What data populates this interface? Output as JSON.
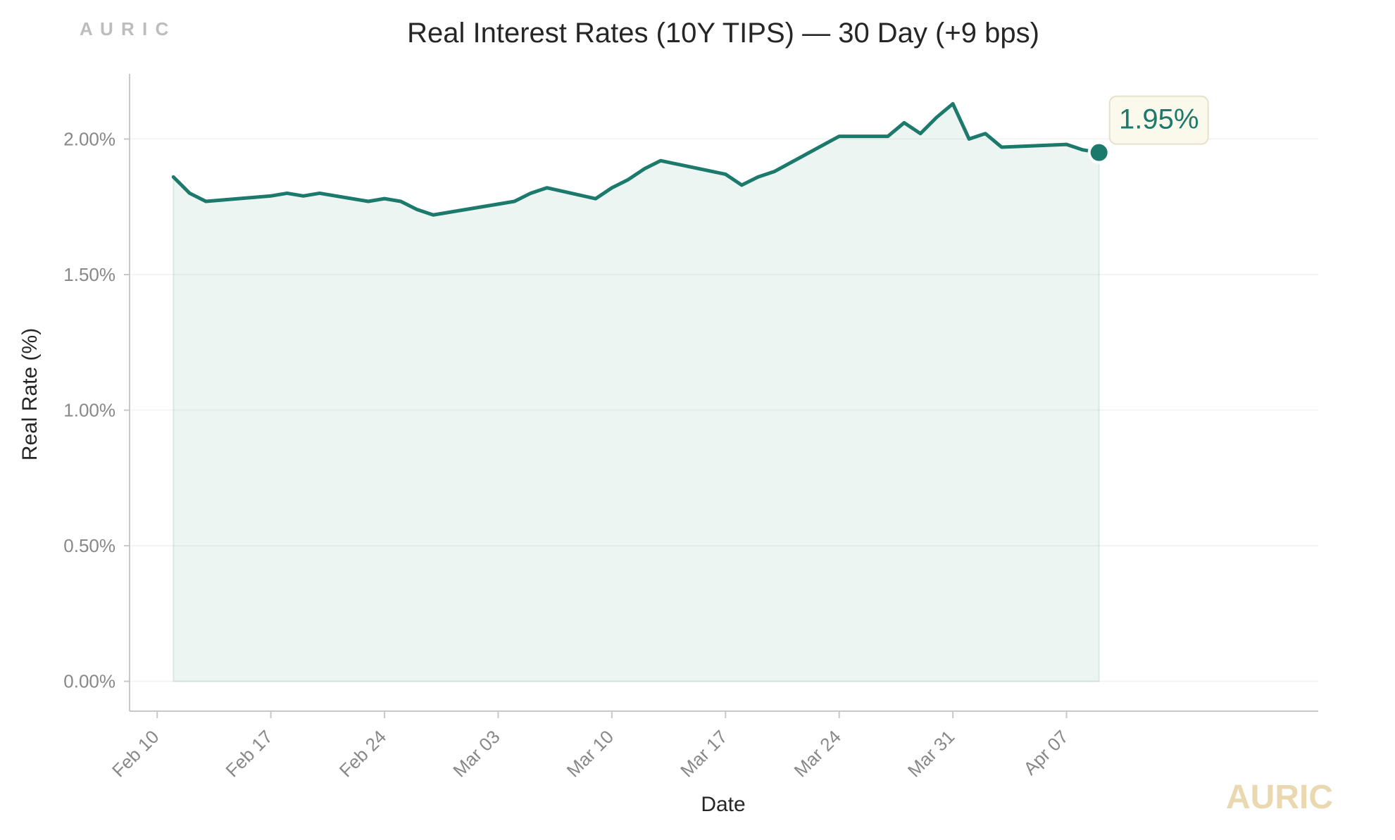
{
  "brand": {
    "top_left_text": "A U R I C",
    "watermark_text": "AURIC",
    "top_left_color": "#bdbdbd",
    "watermark_color": "#ead9b0"
  },
  "chart_data": {
    "type": "area",
    "title": "Real Interest Rates (10Y TIPS) — 30 Day (+9 bps)",
    "xlabel": "Date",
    "ylabel": "Real Rate (%)",
    "ylim": [
      -0.11,
      2.24
    ],
    "xlim": [
      -1.7,
      71.5
    ],
    "grid": true,
    "x_tick_positions": [
      0,
      7,
      14,
      21,
      28,
      35,
      42,
      49,
      56
    ],
    "x_tick_labels": [
      "Feb 10",
      "Feb 17",
      "Feb 24",
      "Mar 03",
      "Mar 10",
      "Mar 17",
      "Mar 24",
      "Mar 31",
      "Apr 07"
    ],
    "y_ticks": [
      0.0,
      0.5,
      1.0,
      1.5,
      2.0
    ],
    "y_tick_labels": [
      "0.00%",
      "0.50%",
      "1.00%",
      "1.50%",
      "2.00%"
    ],
    "series": [
      {
        "name": "Real Interest Rates (10Y TIPS)",
        "color": "#1b7a6b",
        "fill_color": "#1b7a6b",
        "x": [
          1,
          2,
          3,
          7,
          8,
          9,
          10,
          13,
          14,
          15,
          16,
          17,
          21,
          22,
          23,
          24,
          27,
          28,
          29,
          30,
          31,
          35,
          36,
          37,
          38,
          42,
          43,
          44,
          45,
          46,
          47,
          48,
          49,
          50,
          51,
          52,
          56,
          57,
          58
        ],
        "values": [
          1.86,
          1.8,
          1.77,
          1.79,
          1.8,
          1.79,
          1.8,
          1.77,
          1.78,
          1.77,
          1.74,
          1.72,
          1.76,
          1.77,
          1.8,
          1.82,
          1.78,
          1.82,
          1.85,
          1.89,
          1.92,
          1.87,
          1.83,
          1.86,
          1.88,
          2.01,
          2.01,
          2.01,
          2.01,
          2.06,
          2.02,
          2.08,
          2.13,
          2.0,
          2.02,
          1.97,
          1.98,
          1.96,
          1.95
        ]
      }
    ],
    "last_value_label": "1.95%",
    "last_value_box_color": "#fbf8ec"
  }
}
